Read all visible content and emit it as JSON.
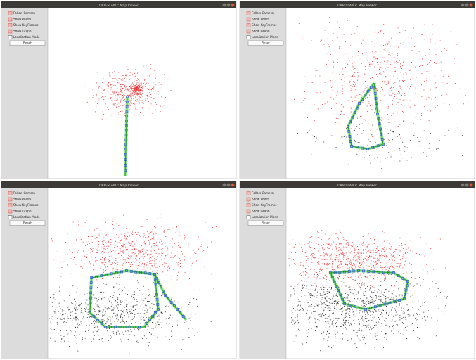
{
  "windows": [
    {
      "title": "ORB-SLAM2: Map Viewer",
      "checkboxes": [
        {
          "label": "Follow Camera",
          "checked": true
        },
        {
          "label": "Show Points",
          "checked": true
        },
        {
          "label": "Show KeyFrames",
          "checked": true
        },
        {
          "label": "Show Graph",
          "checked": true
        },
        {
          "label": "Localization Mode",
          "checked": false
        }
      ],
      "button": "Reset"
    },
    {
      "title": "ORB-SLAM2: Map Viewer",
      "checkboxes": [
        {
          "label": "Follow Camera",
          "checked": true
        },
        {
          "label": "Show Points",
          "checked": true
        },
        {
          "label": "Show KeyFrames",
          "checked": true
        },
        {
          "label": "Show Graph",
          "checked": true
        },
        {
          "label": "Localization Mode",
          "checked": false
        }
      ],
      "button": "Reset"
    },
    {
      "title": "ORB-SLAM2: Map Viewer",
      "checkboxes": [
        {
          "label": "Follow Camera",
          "checked": true
        },
        {
          "label": "Show Points",
          "checked": true
        },
        {
          "label": "Show KeyFrames",
          "checked": true
        },
        {
          "label": "Show Graph",
          "checked": true
        },
        {
          "label": "Localization Mode",
          "checked": false
        }
      ],
      "button": "Reset"
    },
    {
      "title": "ORB-SLAM2: Map Viewer",
      "checkboxes": [
        {
          "label": "Follow Camera",
          "checked": true
        },
        {
          "label": "Show Points",
          "checked": true
        },
        {
          "label": "Show KeyFrames",
          "checked": true
        },
        {
          "label": "Show Graph",
          "checked": true
        },
        {
          "label": "Localization Mode",
          "checked": false
        }
      ],
      "button": "Reset"
    }
  ]
}
